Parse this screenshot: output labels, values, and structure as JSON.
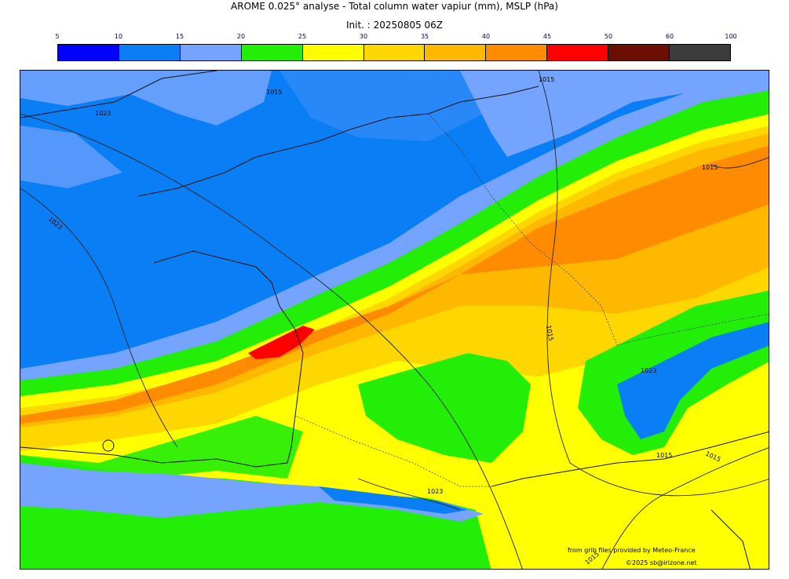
{
  "header": {
    "title": "AROME 0.025° analyse - Total column water vapiur (mm), MSLP (hPa)",
    "init": "Init. : 20250805 06Z"
  },
  "legend": {
    "ticks": [
      "5",
      "10",
      "15",
      "20",
      "25",
      "30",
      "35",
      "40",
      "45",
      "50",
      "60",
      "100"
    ],
    "colors": [
      "#0000ff",
      "#0a7ef5",
      "#74a4ff",
      "#22ee08",
      "#ffff00",
      "#ffd700",
      "#ffb800",
      "#ff8b00",
      "#ff0000",
      "#6b0f05",
      "#3c3c3c"
    ]
  },
  "map": {
    "isobar_labels": [
      "1015",
      "1015",
      "1023",
      "1023",
      "1015",
      "1015",
      "1023",
      "1015",
      "1015",
      "1023",
      "1015"
    ]
  },
  "footer": {
    "source": "from grib files provided by Meteo-France",
    "copyright": "©2025 sb@irizone.net"
  }
}
